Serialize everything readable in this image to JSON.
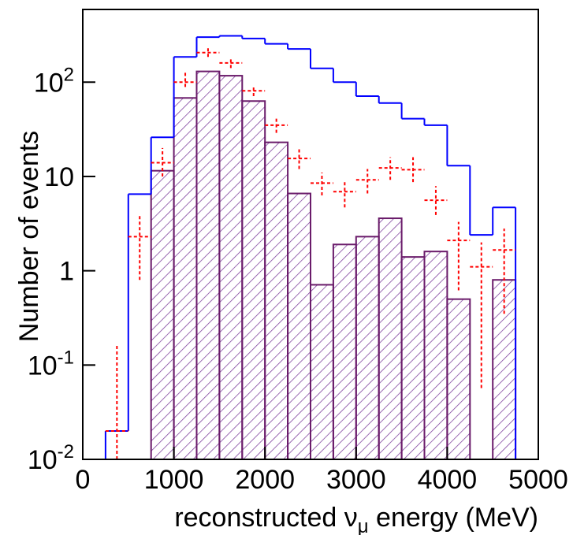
{
  "chart_data": {
    "type": "histogram",
    "x_label": {
      "before": "reconstructed ν",
      "subscript": "μ",
      "after": " energy (MeV)"
    },
    "y_label": "Number of events",
    "bins": [
      0,
      250,
      500,
      750,
      1000,
      1250,
      1500,
      1750,
      2000,
      2250,
      2500,
      2750,
      3000,
      3250,
      3500,
      3750,
      4000,
      4250,
      4500,
      4750,
      5000
    ],
    "log_y": true,
    "xlim": [
      0,
      5000
    ],
    "ylim": [
      0.01,
      590
    ],
    "xticks": [
      0,
      1000,
      2000,
      3000,
      4000,
      5000
    ],
    "yticks": [
      {
        "value": 0.01,
        "label": "10",
        "exponent": "-2"
      },
      {
        "value": 0.1,
        "label": "10",
        "exponent": "-1"
      },
      {
        "value": 1,
        "label": "1"
      },
      {
        "value": 10,
        "label": "10"
      },
      {
        "value": 100,
        "label": "10",
        "exponent": "2"
      }
    ],
    "series": [
      {
        "style": "step",
        "color": "#0000ff",
        "values": [
          0.01,
          0.02,
          6.5,
          26,
          185,
          300,
          310,
          290,
          255,
          225,
          140,
          100,
          71,
          60,
          41,
          35,
          13,
          2.4,
          4.7,
          0.01
        ]
      },
      {
        "style": "hatched",
        "color": "#6a1b6a",
        "values": [
          null,
          null,
          null,
          11.5,
          68,
          130,
          117,
          63,
          23,
          6.6,
          0.71,
          1.9,
          2.3,
          3.6,
          1.4,
          1.6,
          0.5,
          null,
          0.8,
          null
        ]
      },
      {
        "style": "errorbar",
        "color": "#ff0000",
        "values": [
          null,
          0.02,
          2.3,
          14,
          100,
          206,
          160,
          81,
          35,
          15.5,
          8.5,
          6.9,
          9.2,
          12.3,
          11.8,
          5.6,
          2.1,
          1.1,
          1.66,
          null
        ],
        "lower": [
          null,
          0.01,
          0.8,
          10,
          89,
          185,
          141,
          71,
          29,
          12,
          6.3,
          4.7,
          6.6,
          9.2,
          8.7,
          3.9,
          0.62,
          0.057,
          0.35,
          null
        ],
        "upper": [
          null,
          0.16,
          4.0,
          20,
          126,
          233,
          180,
          93,
          41,
          20,
          11,
          9.1,
          12,
          16,
          16,
          7.9,
          3.3,
          2.0,
          2.8,
          null
        ]
      }
    ]
  }
}
